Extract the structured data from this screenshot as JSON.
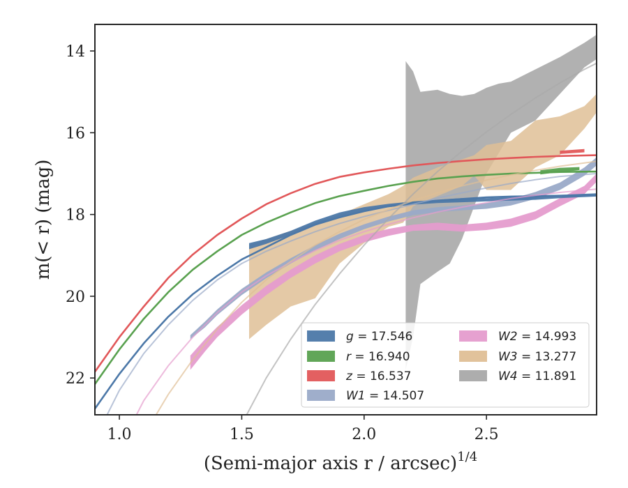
{
  "chart_data": {
    "type": "line",
    "xlabel": "(Semi-major axis r / arcsec)",
    "xlabel_exp": "1/4",
    "ylabel": "m(< r) (mag)",
    "xlim": [
      0.9,
      2.95
    ],
    "ylim": [
      22.9,
      13.35
    ],
    "y_inverted": true,
    "grid": false,
    "legend_position": "lower-right",
    "x_ticks": [
      "1.0",
      "1.5",
      "2.0",
      "2.5"
    ],
    "y_ticks": [
      "14",
      "16",
      "18",
      "20",
      "22"
    ],
    "x_tick_values": [
      1.0,
      1.5,
      2.0,
      2.5
    ],
    "y_tick_values": [
      14,
      16,
      18,
      20,
      22
    ],
    "series": [
      {
        "name": "g",
        "legend_value": "17.546",
        "color": "#4c78a8",
        "model": [
          [
            0.9,
            22.75
          ],
          [
            1.0,
            21.9
          ],
          [
            1.1,
            21.15
          ],
          [
            1.2,
            20.5
          ],
          [
            1.3,
            19.95
          ],
          [
            1.4,
            19.5
          ],
          [
            1.5,
            19.1
          ],
          [
            1.6,
            18.8
          ],
          [
            1.7,
            18.5
          ],
          [
            1.8,
            18.25
          ],
          [
            1.9,
            18.07
          ],
          [
            2.0,
            17.92
          ],
          [
            2.1,
            17.8
          ],
          [
            2.2,
            17.72
          ],
          [
            2.3,
            17.66
          ],
          [
            2.4,
            17.62
          ],
          [
            2.5,
            17.58
          ],
          [
            2.6,
            17.56
          ],
          [
            2.7,
            17.55
          ],
          [
            2.8,
            17.54
          ],
          [
            2.95,
            17.53
          ]
        ],
        "band": [
          [
            1.53,
            18.7,
            18.85
          ],
          [
            1.6,
            18.6,
            18.72
          ],
          [
            1.7,
            18.4,
            18.5
          ],
          [
            1.8,
            18.15,
            18.25
          ],
          [
            1.9,
            17.95,
            18.05
          ],
          [
            2.0,
            17.82,
            17.92
          ],
          [
            2.1,
            17.74,
            17.82
          ],
          [
            2.2,
            17.68,
            17.76
          ],
          [
            2.3,
            17.64,
            17.72
          ],
          [
            2.4,
            17.6,
            17.7
          ],
          [
            2.5,
            17.6,
            17.68
          ],
          [
            2.6,
            17.58,
            17.66
          ],
          [
            2.7,
            17.56,
            17.64
          ],
          [
            2.8,
            17.52,
            17.6
          ],
          [
            2.95,
            17.48,
            17.56
          ]
        ]
      },
      {
        "name": "r",
        "legend_value": "16.940",
        "color": "#59a14f",
        "model": [
          [
            0.9,
            22.15
          ],
          [
            1.0,
            21.3
          ],
          [
            1.1,
            20.55
          ],
          [
            1.2,
            19.9
          ],
          [
            1.3,
            19.35
          ],
          [
            1.4,
            18.9
          ],
          [
            1.5,
            18.5
          ],
          [
            1.6,
            18.2
          ],
          [
            1.7,
            17.95
          ],
          [
            1.8,
            17.72
          ],
          [
            1.9,
            17.55
          ],
          [
            2.0,
            17.42
          ],
          [
            2.1,
            17.3
          ],
          [
            2.2,
            17.2
          ],
          [
            2.3,
            17.12
          ],
          [
            2.4,
            17.07
          ],
          [
            2.5,
            17.03
          ],
          [
            2.6,
            17.0
          ],
          [
            2.7,
            16.98
          ],
          [
            2.8,
            16.96
          ],
          [
            2.95,
            16.95
          ]
        ],
        "band": [
          [
            2.72,
            16.92,
            17.02
          ],
          [
            2.8,
            16.86,
            16.96
          ],
          [
            2.88,
            16.84,
            16.92
          ]
        ]
      },
      {
        "name": "z",
        "legend_value": "16.537",
        "color": "#e15759",
        "model": [
          [
            0.9,
            21.85
          ],
          [
            1.0,
            21.0
          ],
          [
            1.1,
            20.25
          ],
          [
            1.2,
            19.55
          ],
          [
            1.3,
            18.98
          ],
          [
            1.4,
            18.5
          ],
          [
            1.5,
            18.1
          ],
          [
            1.6,
            17.75
          ],
          [
            1.7,
            17.48
          ],
          [
            1.8,
            17.25
          ],
          [
            1.9,
            17.08
          ],
          [
            2.0,
            16.97
          ],
          [
            2.1,
            16.88
          ],
          [
            2.2,
            16.8
          ],
          [
            2.3,
            16.74
          ],
          [
            2.4,
            16.69
          ],
          [
            2.5,
            16.65
          ],
          [
            2.6,
            16.62
          ],
          [
            2.7,
            16.59
          ],
          [
            2.8,
            16.57
          ],
          [
            2.95,
            16.55
          ]
        ],
        "band": [
          [
            2.8,
            16.44,
            16.52
          ],
          [
            2.9,
            16.4,
            16.48
          ]
        ]
      },
      {
        "name": "W1",
        "legend_value": "14.507",
        "color": "#9aaac8",
        "model": [
          [
            0.95,
            22.9
          ],
          [
            1.0,
            22.3
          ],
          [
            1.1,
            21.4
          ],
          [
            1.2,
            20.7
          ],
          [
            1.3,
            20.1
          ],
          [
            1.4,
            19.6
          ],
          [
            1.5,
            19.2
          ],
          [
            1.6,
            18.9
          ],
          [
            1.7,
            18.65
          ],
          [
            1.8,
            18.42
          ],
          [
            1.9,
            18.22
          ],
          [
            2.0,
            18.05
          ],
          [
            2.1,
            17.9
          ],
          [
            2.2,
            17.75
          ],
          [
            2.3,
            17.6
          ],
          [
            2.4,
            17.47
          ],
          [
            2.5,
            17.35
          ],
          [
            2.6,
            17.24
          ],
          [
            2.7,
            17.15
          ],
          [
            2.8,
            17.07
          ],
          [
            2.95,
            17.0
          ]
        ],
        "band": [
          [
            1.29,
            20.95,
            21.05
          ],
          [
            1.35,
            20.62,
            20.76
          ],
          [
            1.4,
            20.32,
            20.46
          ],
          [
            1.5,
            19.82,
            19.97
          ],
          [
            1.6,
            19.42,
            19.56
          ],
          [
            1.7,
            19.07,
            19.2
          ],
          [
            1.8,
            18.75,
            18.88
          ],
          [
            1.9,
            18.47,
            18.6
          ],
          [
            2.0,
            18.24,
            18.36
          ],
          [
            2.1,
            18.05,
            18.17
          ],
          [
            2.2,
            17.9,
            18.02
          ],
          [
            2.3,
            17.82,
            17.94
          ],
          [
            2.4,
            17.78,
            17.9
          ],
          [
            2.5,
            17.72,
            17.86
          ],
          [
            2.6,
            17.62,
            17.78
          ],
          [
            2.7,
            17.45,
            17.62
          ],
          [
            2.8,
            17.22,
            17.4
          ],
          [
            2.9,
            16.85,
            17.05
          ],
          [
            2.95,
            16.6,
            16.8
          ]
        ]
      },
      {
        "name": "W2",
        "legend_value": "14.993",
        "color": "#e59ccd",
        "model": [
          [
            1.07,
            22.9
          ],
          [
            1.1,
            22.55
          ],
          [
            1.2,
            21.7
          ],
          [
            1.3,
            21.0
          ],
          [
            1.4,
            20.4
          ],
          [
            1.5,
            19.9
          ],
          [
            1.6,
            19.5
          ],
          [
            1.7,
            19.17
          ],
          [
            1.8,
            18.88
          ],
          [
            1.9,
            18.63
          ],
          [
            2.0,
            18.42
          ],
          [
            2.1,
            18.24
          ],
          [
            2.2,
            18.08
          ],
          [
            2.3,
            17.94
          ],
          [
            2.4,
            17.82
          ],
          [
            2.5,
            17.71
          ],
          [
            2.6,
            17.61
          ],
          [
            2.7,
            17.53
          ],
          [
            2.8,
            17.46
          ],
          [
            2.95,
            17.38
          ]
        ],
        "band": [
          [
            1.29,
            21.45,
            21.8
          ],
          [
            1.35,
            21.05,
            21.35
          ],
          [
            1.4,
            20.75,
            21.0
          ],
          [
            1.5,
            20.22,
            20.45
          ],
          [
            1.6,
            19.75,
            19.97
          ],
          [
            1.7,
            19.35,
            19.55
          ],
          [
            1.8,
            19.0,
            19.2
          ],
          [
            1.9,
            18.72,
            18.9
          ],
          [
            2.0,
            18.5,
            18.68
          ],
          [
            2.1,
            18.35,
            18.52
          ],
          [
            2.2,
            18.25,
            18.4
          ],
          [
            2.3,
            18.2,
            18.38
          ],
          [
            2.4,
            18.25,
            18.42
          ],
          [
            2.5,
            18.2,
            18.38
          ],
          [
            2.6,
            18.1,
            18.3
          ],
          [
            2.7,
            17.92,
            18.12
          ],
          [
            2.8,
            17.6,
            17.8
          ],
          [
            2.9,
            17.3,
            17.5
          ],
          [
            2.95,
            17.0,
            17.2
          ]
        ]
      },
      {
        "name": "W3",
        "legend_value": "13.277",
        "color": "#dfbf96",
        "model": [
          [
            1.15,
            22.9
          ],
          [
            1.2,
            22.4
          ],
          [
            1.3,
            21.55
          ],
          [
            1.4,
            20.8
          ],
          [
            1.5,
            20.15
          ],
          [
            1.6,
            19.6
          ],
          [
            1.7,
            19.15
          ],
          [
            1.8,
            18.75
          ],
          [
            1.9,
            18.42
          ],
          [
            2.0,
            18.12
          ],
          [
            2.1,
            17.88
          ],
          [
            2.2,
            17.66
          ],
          [
            2.3,
            17.47
          ],
          [
            2.4,
            17.3
          ],
          [
            2.5,
            17.16
          ],
          [
            2.6,
            17.03
          ],
          [
            2.7,
            16.92
          ],
          [
            2.8,
            16.82
          ],
          [
            2.95,
            16.7
          ]
        ],
        "band": [
          [
            1.53,
            18.75,
            21.05
          ],
          [
            1.6,
            18.6,
            20.7
          ],
          [
            1.7,
            18.4,
            20.25
          ],
          [
            1.8,
            18.2,
            20.05
          ],
          [
            1.9,
            18.0,
            19.2
          ],
          [
            2.0,
            17.75,
            18.7
          ],
          [
            2.1,
            17.5,
            18.3
          ],
          [
            2.16,
            17.3,
            18.2
          ],
          [
            2.2,
            17.1,
            17.8
          ],
          [
            2.3,
            16.85,
            17.55
          ],
          [
            2.4,
            16.65,
            17.3
          ],
          [
            2.45,
            16.55,
            17.05
          ],
          [
            2.5,
            16.3,
            17.4
          ],
          [
            2.6,
            16.2,
            17.4
          ],
          [
            2.7,
            15.7,
            16.85
          ],
          [
            2.8,
            15.6,
            16.55
          ],
          [
            2.9,
            15.35,
            15.9
          ],
          [
            2.95,
            15.05,
            15.5
          ]
        ]
      },
      {
        "name": "W4",
        "legend_value": "11.891",
        "color": "#a9a9a9",
        "model": [
          [
            1.52,
            22.9
          ],
          [
            1.6,
            22.0
          ],
          [
            1.7,
            21.05
          ],
          [
            1.8,
            20.2
          ],
          [
            1.9,
            19.45
          ],
          [
            2.0,
            18.75
          ],
          [
            2.1,
            18.1
          ],
          [
            2.2,
            17.5
          ],
          [
            2.3,
            16.95
          ],
          [
            2.4,
            16.45
          ],
          [
            2.5,
            15.98
          ],
          [
            2.6,
            15.55
          ],
          [
            2.7,
            15.15
          ],
          [
            2.8,
            14.78
          ],
          [
            2.9,
            14.45
          ],
          [
            2.95,
            14.3
          ]
        ],
        "band": [
          [
            2.17,
            14.25,
            21.8
          ],
          [
            2.2,
            14.5,
            21.0
          ],
          [
            2.23,
            15.0,
            19.7
          ],
          [
            2.3,
            14.95,
            19.4
          ],
          [
            2.35,
            15.05,
            19.2
          ],
          [
            2.4,
            15.1,
            18.6
          ],
          [
            2.45,
            15.05,
            17.8
          ],
          [
            2.5,
            14.9,
            17.0
          ],
          [
            2.55,
            14.8,
            16.5
          ],
          [
            2.6,
            14.75,
            16.0
          ],
          [
            2.7,
            14.45,
            15.7
          ],
          [
            2.8,
            14.15,
            15.05
          ],
          [
            2.9,
            13.8,
            14.4
          ],
          [
            2.95,
            13.6,
            14.2
          ]
        ]
      }
    ]
  }
}
